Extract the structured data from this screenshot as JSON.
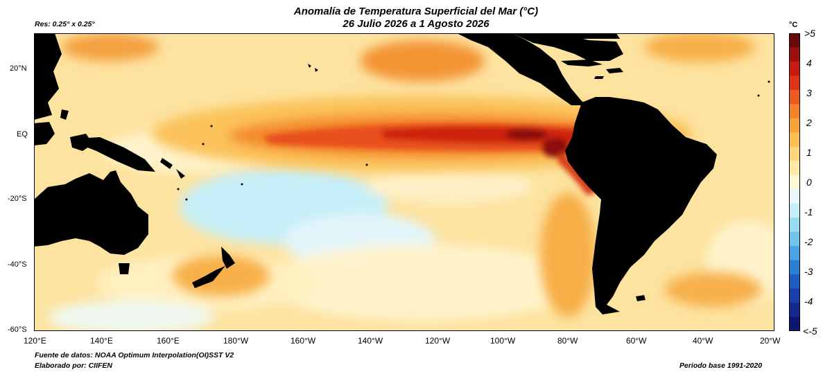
{
  "title": {
    "line1": "Anomalía de Temperatura Superficial del Mar (°C)",
    "line2": "26 Julio 2026 a 1 Agosto 2026"
  },
  "resolution": "Res: 0.25° x 0.25°",
  "source": "Fuente de datos: NOAA Optimum Interpolation(OI)SST V2",
  "author": "Elaborado por: CIIFEN",
  "base_period": "Periodo base 1991-2020",
  "latitude_labels": [
    "20°N",
    "EQ",
    "-20°S",
    "-40°S",
    "-60°S"
  ],
  "longitude_labels": [
    "120°E",
    "140°E",
    "160°E",
    "180°W",
    "160°W",
    "140°W",
    "120°W",
    "100°W",
    "80°W",
    "60°W",
    "40°W",
    "20°W"
  ],
  "colorbar": {
    "unit": "°C",
    "labels": [
      ">5",
      "4",
      "3",
      "2",
      "1",
      "0",
      "-1",
      "-2",
      "-3",
      "-4",
      "<-5"
    ],
    "colors": [
      "#6a0a0a",
      "#9e1010",
      "#c81a10",
      "#e03214",
      "#ec5a1e",
      "#f4822a",
      "#f8a23a",
      "#fbbf52",
      "#fdd57a",
      "#feeaa6",
      "#fff8d8",
      "#eaf8fc",
      "#c6eef8",
      "#98dcf2",
      "#6ec4ec",
      "#48a4e2",
      "#2c80d4",
      "#1e5cc4",
      "#1a3eaa",
      "#142890",
      "#0c1670"
    ]
  },
  "colors": {
    "land": "#000000",
    "ocean_neutral": "#fff8d8",
    "warm_strong": "#c81a10",
    "warm_moderate": "#f4822a",
    "cool": "#c6eef8"
  }
}
